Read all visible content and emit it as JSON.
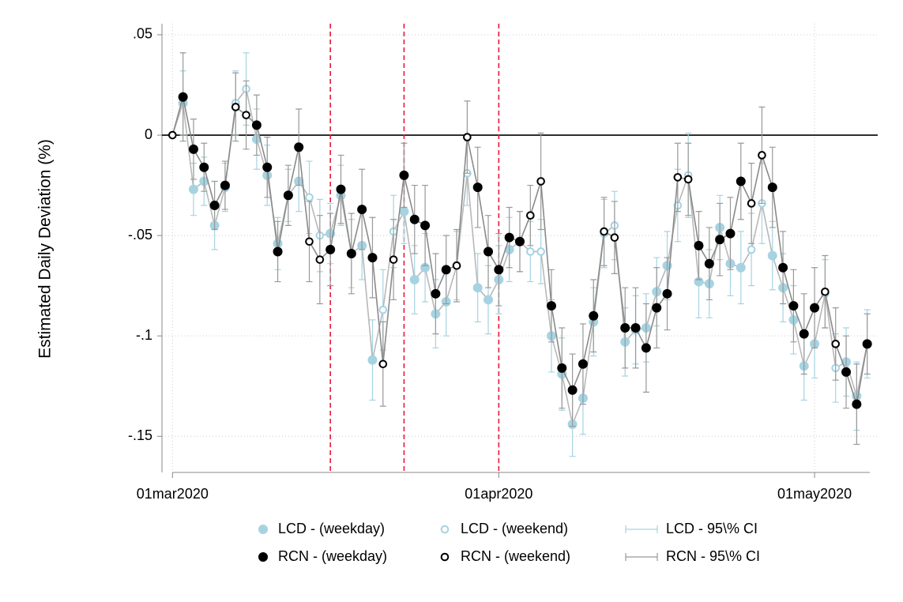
{
  "chart_data": {
    "type": "scatter",
    "y_label": "Estimated Daily Deviation (%)",
    "x": [
      21975,
      21976,
      21977,
      21978,
      21979,
      21980,
      21981,
      21982,
      21983,
      21984,
      21985,
      21986,
      21987,
      21988,
      21989,
      21990,
      21991,
      21992,
      21993,
      21994,
      21995,
      21996,
      21997,
      21998,
      21999,
      22000,
      22001,
      22002,
      22003,
      22004,
      22005,
      22006,
      22007,
      22008,
      22009,
      22010,
      22011,
      22012,
      22013,
      22014,
      22015,
      22016,
      22017,
      22018,
      22019,
      22020,
      22021,
      22022,
      22023,
      22024,
      22025,
      22026,
      22027,
      22028,
      22029,
      22030,
      22031,
      22032,
      22033,
      22034,
      22035,
      22036,
      22037,
      22038,
      22039,
      22040,
      22041
    ],
    "xlim": [
      21974,
      22042
    ],
    "xticks": [
      {
        "value": 21975,
        "label": "01mar2020"
      },
      {
        "value": 22006,
        "label": "01apr2020"
      },
      {
        "value": 22036,
        "label": "01may2020"
      }
    ],
    "ylim": [
      -0.168,
      0.0555
    ],
    "yticks": [
      {
        "value": 0.05,
        "label": ".05"
      },
      0,
      {
        "value": -0.05,
        "label": "-.05"
      },
      {
        "value": -0.1,
        "label": "-.1"
      },
      {
        "value": -0.15,
        "label": "-.15"
      }
    ],
    "grid": true,
    "hline": 0,
    "vlines": [
      21990,
      21997,
      22006
    ],
    "vline_color": "#e8173a",
    "series": [
      {
        "name": "LCD - (weekday)",
        "weekend_name": "LCD - (weekend)",
        "ci_name": "LCD - 95\\% CI",
        "color": "#a6d3e2",
        "line_color": "#b8b8b8",
        "ci_color": "#a6d3e2",
        "values": [
          0,
          0.016,
          -0.027,
          -0.023,
          -0.045,
          -0.026,
          0.016,
          0.023,
          -0.002,
          -0.02,
          -0.054,
          -0.03,
          -0.023,
          -0.031,
          -0.05,
          -0.049,
          -0.03,
          -0.059,
          -0.055,
          -0.112,
          -0.087,
          -0.048,
          -0.038,
          -0.072,
          -0.066,
          -0.089,
          -0.083,
          -0.065,
          -0.019,
          -0.076,
          -0.082,
          -0.072,
          -0.057,
          -0.053,
          -0.058,
          -0.058,
          -0.1,
          -0.119,
          -0.144,
          -0.131,
          -0.093,
          -0.049,
          -0.045,
          -0.103,
          -0.097,
          -0.096,
          -0.078,
          -0.065,
          -0.035,
          -0.02,
          -0.073,
          -0.074,
          -0.046,
          -0.064,
          -0.066,
          -0.057,
          -0.034,
          -0.06,
          -0.076,
          -0.092,
          -0.115,
          -0.104,
          -0.079,
          -0.116,
          -0.113,
          -0.13,
          -0.104
        ],
        "errors": [
          0,
          0.016,
          0.013,
          0.012,
          0.012,
          0.012,
          0.016,
          0.018,
          0.015,
          0.015,
          0.013,
          0.013,
          0.015,
          0.018,
          0.018,
          0.015,
          0.015,
          0.017,
          0.017,
          0.02,
          0.02,
          0.018,
          0.016,
          0.017,
          0.017,
          0.017,
          0.017,
          0.017,
          0.016,
          0.017,
          0.017,
          0.017,
          0.016,
          0.015,
          0.015,
          0.016,
          0.018,
          0.018,
          0.016,
          0.018,
          0.017,
          0.017,
          0.017,
          0.017,
          0.017,
          0.017,
          0.017,
          0.017,
          0.018,
          0.021,
          0.018,
          0.017,
          0.016,
          0.016,
          0.018,
          0.018,
          0.02,
          0.017,
          0.017,
          0.017,
          0.017,
          0.017,
          0.017,
          0.017,
          0.017,
          0.017,
          0.017
        ]
      },
      {
        "name": "RCN - (weekday)",
        "weekend_name": "RCN - (weekend)",
        "ci_name": "RCN - 95\\% CI",
        "color": "#000000",
        "line_color": "#8a8a8a",
        "ci_color": "#999999",
        "values": [
          0,
          0.019,
          -0.007,
          -0.016,
          -0.035,
          -0.025,
          0.014,
          0.01,
          0.005,
          -0.016,
          -0.058,
          -0.03,
          -0.006,
          -0.053,
          -0.062,
          -0.057,
          -0.027,
          -0.059,
          -0.037,
          -0.061,
          -0.114,
          -0.062,
          -0.02,
          -0.042,
          -0.045,
          -0.079,
          -0.067,
          -0.065,
          -0.001,
          -0.026,
          -0.058,
          -0.067,
          -0.051,
          -0.053,
          -0.04,
          -0.023,
          -0.085,
          -0.116,
          -0.127,
          -0.114,
          -0.09,
          -0.048,
          -0.051,
          -0.096,
          -0.096,
          -0.106,
          -0.086,
          -0.079,
          -0.021,
          -0.022,
          -0.055,
          -0.064,
          -0.052,
          -0.049,
          -0.023,
          -0.034,
          -0.01,
          -0.026,
          -0.066,
          -0.085,
          -0.099,
          -0.086,
          -0.078,
          -0.104,
          -0.118,
          -0.134,
          -0.104
        ],
        "errors": [
          0,
          0.022,
          0.015,
          0.012,
          0.012,
          0.012,
          0.017,
          0.017,
          0.015,
          0.015,
          0.015,
          0.015,
          0.019,
          0.02,
          0.022,
          0.018,
          0.017,
          0.02,
          0.02,
          0.02,
          0.021,
          0.02,
          0.016,
          0.017,
          0.02,
          0.02,
          0.017,
          0.018,
          0.018,
          0.02,
          0.018,
          0.018,
          0.015,
          0.015,
          0.015,
          0.024,
          0.018,
          0.02,
          0.018,
          0.02,
          0.018,
          0.017,
          0.018,
          0.02,
          0.02,
          0.022,
          0.02,
          0.018,
          0.017,
          0.018,
          0.017,
          0.018,
          0.018,
          0.018,
          0.019,
          0.02,
          0.024,
          0.02,
          0.018,
          0.018,
          0.02,
          0.02,
          0.018,
          0.018,
          0.018,
          0.02,
          0.015
        ]
      }
    ]
  }
}
